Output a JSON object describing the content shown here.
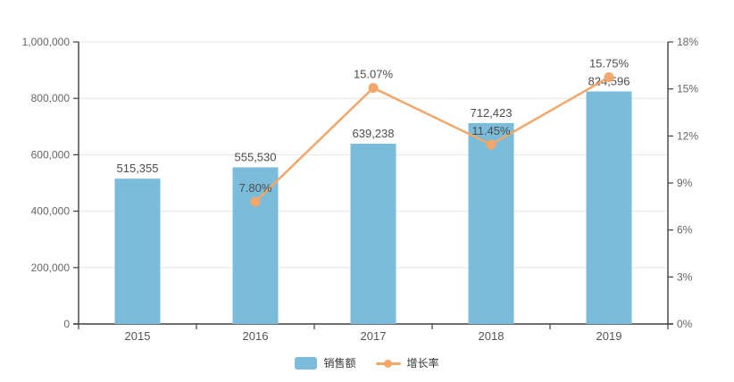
{
  "chart_data": {
    "type": "combo",
    "categories": [
      "2015",
      "2016",
      "2017",
      "2018",
      "2019"
    ],
    "series": [
      {
        "name": "销售额",
        "type": "bar",
        "axis": "left",
        "values": [
          515355,
          555530,
          639238,
          712423,
          824596
        ],
        "labels": [
          "515,355",
          "555,530",
          "639,238",
          "712,423",
          "824,596"
        ],
        "color": "#7bbcdb"
      },
      {
        "name": "增长率",
        "type": "line",
        "axis": "right",
        "values": [
          null,
          7.8,
          15.07,
          11.45,
          15.75
        ],
        "labels": [
          "",
          "7.80%",
          "15.07%",
          "11.45%",
          "15.75%"
        ],
        "color": "#f2a76b"
      }
    ],
    "left_axis": {
      "min": 0,
      "max": 1000000,
      "tick_interval": 200000,
      "ticks": [
        0,
        200000,
        400000,
        600000,
        800000,
        1000000
      ],
      "tick_labels": [
        "0",
        "200,000",
        "400,000",
        "600,000",
        "800,000",
        "1,000,000"
      ]
    },
    "right_axis": {
      "min": 0,
      "max": 18,
      "tick_interval": 3,
      "ticks": [
        0,
        3,
        6,
        9,
        12,
        15,
        18
      ],
      "tick_labels": [
        "0%",
        "3%",
        "6%",
        "9%",
        "12%",
        "15%",
        "18%"
      ]
    },
    "grid": true,
    "legend_position": "bottom",
    "title": ""
  },
  "legend": {
    "items": [
      {
        "label": "销售额",
        "swatch": "bar"
      },
      {
        "label": "增长率",
        "swatch": "line"
      }
    ]
  },
  "colors": {
    "bar": "#7bbcdb",
    "line": "#f2a76b",
    "axis": "#3f3f3f",
    "gridline": "#e5e5e5",
    "data_label": "#4d4d4d",
    "axis_text": "#666666",
    "category_text": "#555555",
    "background": "#ffffff"
  }
}
